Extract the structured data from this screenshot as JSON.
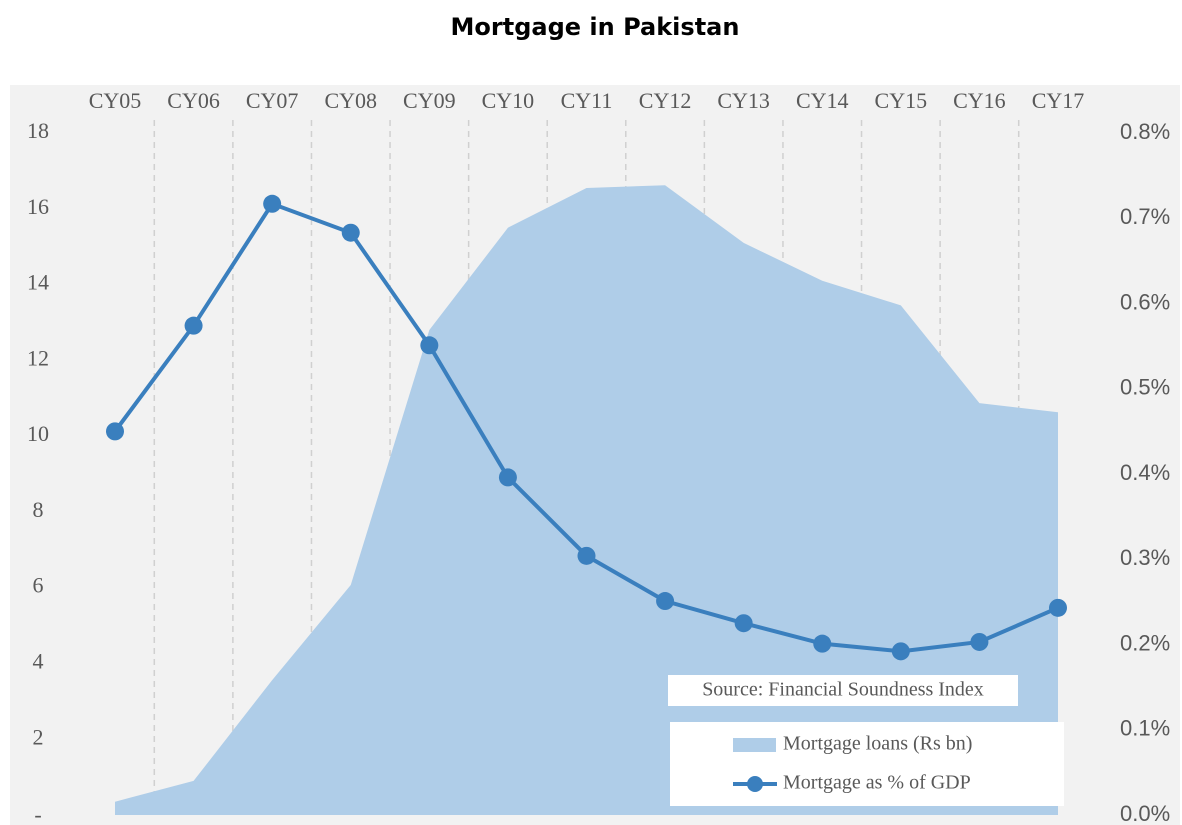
{
  "chart_data": {
    "type": "line",
    "title": "Mortgage in Pakistan",
    "categories": [
      "CY05",
      "CY06",
      "CY07",
      "CY08",
      "CY09",
      "CY10",
      "CY11",
      "CY12",
      "CY13",
      "CY14",
      "CY15",
      "CY16",
      "CY17"
    ],
    "series": [
      {
        "name": "Mortgage loans (Rs bn)",
        "type": "area",
        "color": "#afcde8",
        "axis": "y",
        "values": [
          0.35,
          0.9,
          3.56,
          6.07,
          12.8,
          15.5,
          16.55,
          16.62,
          15.1,
          14.1,
          13.45,
          10.87,
          10.63
        ]
      },
      {
        "name": "Mortgage as % of GDP",
        "type": "line",
        "color": "#3a7fbe",
        "axis": "y2",
        "values": [
          0.45,
          0.574,
          0.717,
          0.683,
          0.551,
          0.396,
          0.304,
          0.251,
          0.225,
          0.201,
          0.192,
          0.203,
          0.243
        ]
      }
    ],
    "ylim": [
      0,
      18
    ],
    "yticks": [
      {
        "value": 0,
        "label": "-"
      },
      2,
      4,
      6,
      8,
      10,
      12,
      14,
      16,
      18
    ],
    "y2lim": [
      0,
      0.8
    ],
    "y2ticks": [
      {
        "value": 0,
        "label": "0.0%"
      },
      {
        "value": 0.1,
        "label": "0.1%"
      },
      {
        "value": 0.2,
        "label": "0.2%"
      },
      {
        "value": 0.3,
        "label": "0.3%"
      },
      {
        "value": 0.4,
        "label": "0.4%"
      },
      {
        "value": 0.5,
        "label": "0.5%"
      },
      {
        "value": 0.6,
        "label": "0.6%"
      },
      {
        "value": 0.7,
        "label": "0.7%"
      },
      {
        "value": 0.8,
        "label": "0.8%"
      }
    ],
    "annotation": "Source: Financial Soundness Index",
    "legend": "bottom right"
  }
}
